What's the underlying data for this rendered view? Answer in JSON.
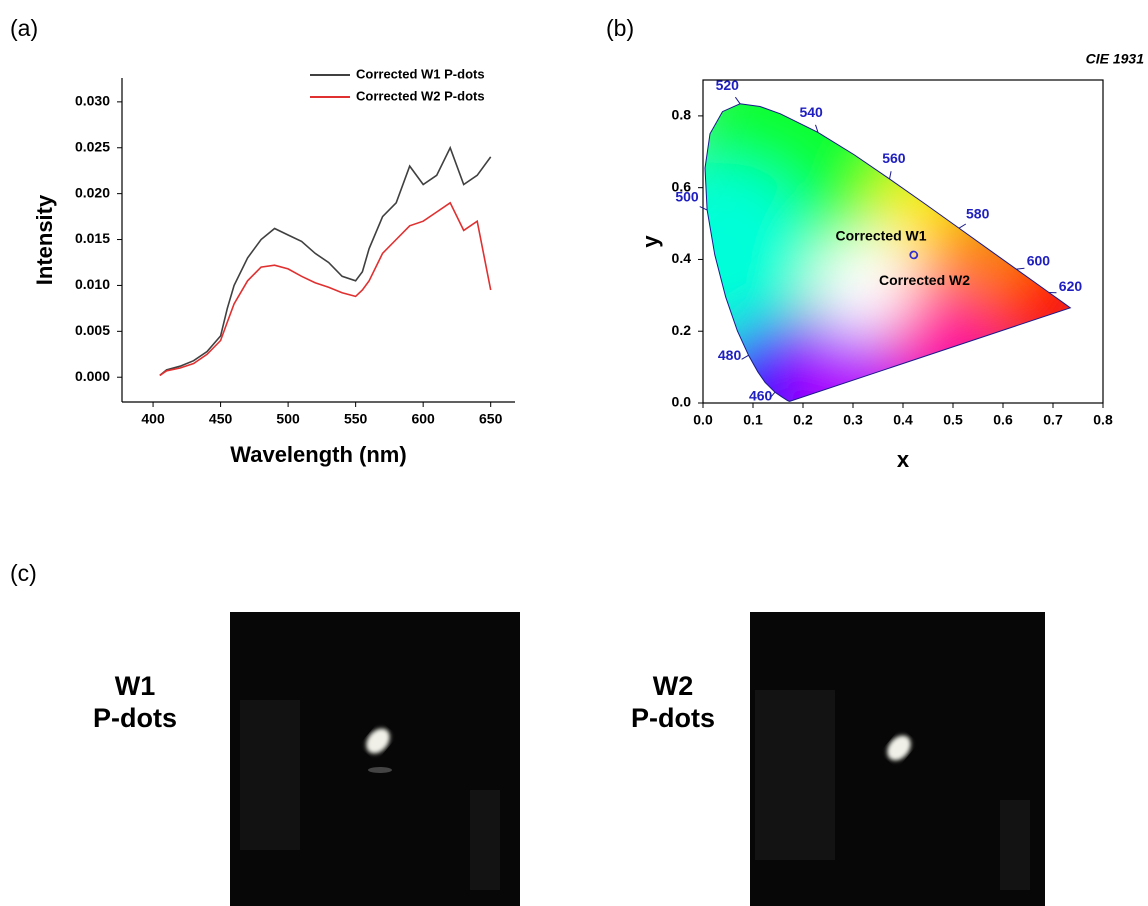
{
  "panel_labels": [
    "(a)",
    "(b)",
    "(c)"
  ],
  "chart_data": [
    {
      "type": "line",
      "xlabel": "Wavelength (nm)",
      "ylabel": "Intensity",
      "x": [
        405,
        410,
        420,
        430,
        440,
        450,
        455,
        460,
        470,
        480,
        490,
        500,
        510,
        520,
        530,
        540,
        550,
        555,
        560,
        570,
        580,
        590,
        600,
        610,
        620,
        630,
        640,
        650
      ],
      "series": [
        {
          "name": "Corrected W1 P-dots",
          "color": "#404040",
          "values": [
            0.0002,
            0.0008,
            0.0012,
            0.0018,
            0.0028,
            0.0045,
            0.0075,
            0.01,
            0.013,
            0.015,
            0.0162,
            0.0155,
            0.0148,
            0.0135,
            0.0125,
            0.011,
            0.0105,
            0.0115,
            0.014,
            0.0175,
            0.019,
            0.023,
            0.021,
            0.022,
            0.025,
            0.021,
            0.022,
            0.024
          ]
        },
        {
          "name": "Corrected W2 P-dots",
          "color": "#e03030",
          "values": [
            0.0002,
            0.0007,
            0.001,
            0.0015,
            0.0025,
            0.004,
            0.006,
            0.008,
            0.0105,
            0.012,
            0.0122,
            0.0118,
            0.011,
            0.0103,
            0.0098,
            0.0092,
            0.0088,
            0.0095,
            0.0105,
            0.0135,
            0.015,
            0.0165,
            0.017,
            0.018,
            0.019,
            0.016,
            0.017,
            0.0095
          ]
        }
      ],
      "xlim": [
        377,
        668
      ],
      "xticks": [
        400,
        450,
        500,
        550,
        600,
        650
      ],
      "ylim": [
        -0.0027,
        0.0326
      ],
      "yticks": [
        {
          "value": 0,
          "label": "0.000"
        },
        {
          "value": 0.005,
          "label": "0.005"
        },
        {
          "value": 0.01,
          "label": "0.010"
        },
        {
          "value": 0.015,
          "label": "0.015"
        },
        {
          "value": 0.02,
          "label": "0.020"
        },
        {
          "value": 0.025,
          "label": "0.025"
        },
        {
          "value": 0.03,
          "label": "0.030"
        }
      ],
      "legend": "top-right"
    },
    {
      "type": "cie",
      "title": "CIE 1931",
      "xlabel": "x",
      "ylabel": "y",
      "xlim": [
        0,
        0.8
      ],
      "ylim": [
        0,
        0.9
      ],
      "xticks": [
        {
          "value": 0,
          "label": "0.0"
        },
        0.1,
        0.2,
        0.3,
        0.4,
        0.5,
        0.6,
        0.7,
        0.8
      ],
      "yticks": [
        {
          "value": 0,
          "label": "0.0"
        },
        0.2,
        0.4,
        0.6,
        0.8
      ],
      "locus": {
        "x": [
          0.1741,
          0.1726,
          0.1689,
          0.1566,
          0.144,
          0.1241,
          0.1096,
          0.0913,
          0.0687,
          0.0454,
          0.0235,
          0.0082,
          0.0039,
          0.0139,
          0.0389,
          0.0743,
          0.1142,
          0.1547,
          0.2296,
          0.3016,
          0.3731,
          0.4441,
          0.5125,
          0.5752,
          0.627,
          0.6658,
          0.6915,
          0.719,
          0.7347
        ],
        "y": [
          0.005,
          0.0048,
          0.0069,
          0.0177,
          0.0297,
          0.0578,
          0.0868,
          0.1327,
          0.2007,
          0.295,
          0.4127,
          0.5384,
          0.6548,
          0.7502,
          0.812,
          0.8338,
          0.8262,
          0.8059,
          0.7543,
          0.6923,
          0.6245,
          0.5547,
          0.4866,
          0.4242,
          0.3725,
          0.334,
          0.3083,
          0.2809,
          0.2653
        ],
        "color": "#1a1a8c"
      },
      "wavelength_marks": [
        {
          "label": 460,
          "x": 0.144,
          "y": 0.03
        },
        {
          "label": 480,
          "x": 0.091,
          "y": 0.133
        },
        {
          "label": 500,
          "x": 0.008,
          "y": 0.538
        },
        {
          "label": 520,
          "x": 0.074,
          "y": 0.834
        },
        {
          "label": 540,
          "x": 0.23,
          "y": 0.754
        },
        {
          "label": 560,
          "x": 0.373,
          "y": 0.624
        },
        {
          "label": 580,
          "x": 0.512,
          "y": 0.487
        },
        {
          "label": 600,
          "x": 0.627,
          "y": 0.373
        },
        {
          "label": 620,
          "x": 0.691,
          "y": 0.308
        }
      ],
      "label_color": "#2020c0",
      "series": [
        {
          "name": "Corrected W1",
          "color": "#3030d0",
          "x": [
            0.421
          ],
          "y": [
            0.413
          ]
        },
        {
          "name": "Corrected W2",
          "color": "#3030d0",
          "x": [
            0.422
          ],
          "y": [
            0.412
          ]
        }
      ]
    }
  ],
  "photos": [
    {
      "label": [
        "W1",
        "P-dots"
      ]
    },
    {
      "label": [
        "W2",
        "P-dots"
      ]
    }
  ]
}
